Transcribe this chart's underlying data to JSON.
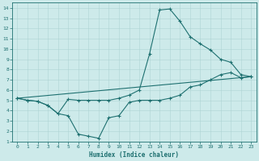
{
  "xlabel": "Humidex (Indice chaleur)",
  "xlim": [
    -0.5,
    23.5
  ],
  "ylim": [
    1,
    14.5
  ],
  "xticks": [
    0,
    1,
    2,
    3,
    4,
    5,
    6,
    7,
    8,
    9,
    10,
    11,
    12,
    13,
    14,
    15,
    16,
    17,
    18,
    19,
    20,
    21,
    22,
    23
  ],
  "yticks": [
    1,
    2,
    3,
    4,
    5,
    6,
    7,
    8,
    9,
    10,
    11,
    12,
    13,
    14
  ],
  "bg_color": "#cdeaea",
  "grid_color": "#aed4d4",
  "line_color": "#1e7070",
  "line1_x": [
    0,
    1,
    2,
    3,
    4,
    5,
    6,
    7,
    8,
    9,
    10,
    11,
    12,
    13,
    14,
    15,
    16,
    17,
    18,
    19,
    20,
    21,
    22,
    23
  ],
  "line1_y": [
    5.2,
    5.0,
    4.9,
    4.5,
    3.7,
    5.1,
    5.0,
    5.0,
    5.0,
    5.0,
    5.2,
    5.5,
    6.0,
    9.5,
    13.8,
    13.9,
    12.7,
    11.2,
    10.5,
    9.9,
    9.0,
    8.7,
    7.5,
    7.3
  ],
  "line2_x": [
    0,
    1,
    2,
    3,
    4,
    5,
    6,
    7,
    8,
    9,
    10,
    11,
    12,
    13,
    14,
    15,
    16,
    17,
    18,
    19,
    20,
    21,
    22,
    23
  ],
  "line2_y": [
    5.2,
    5.0,
    4.9,
    4.5,
    3.7,
    3.5,
    1.7,
    1.5,
    1.3,
    3.3,
    3.5,
    4.8,
    5.0,
    5.0,
    5.0,
    5.2,
    5.5,
    6.3,
    6.5,
    7.0,
    7.5,
    7.7,
    7.2,
    7.3
  ],
  "line3_x": [
    0,
    23
  ],
  "line3_y": [
    5.2,
    7.3
  ]
}
